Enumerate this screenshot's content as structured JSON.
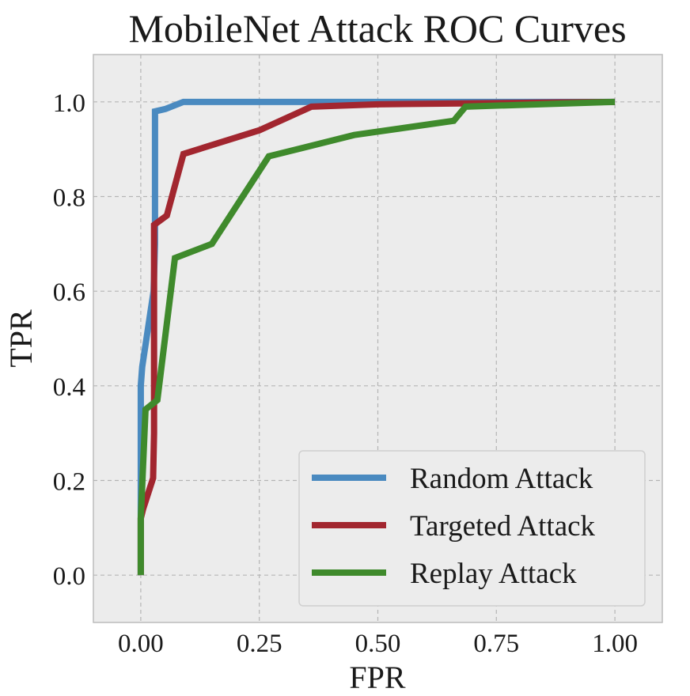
{
  "chart_data": {
    "type": "line",
    "title": "MobileNet Attack ROC Curves",
    "xlabel": "FPR",
    "ylabel": "TPR",
    "xlim": [
      -0.1,
      1.1
    ],
    "ylim": [
      -0.1,
      1.1
    ],
    "xticks": [
      "0.00",
      "0.25",
      "0.50",
      "0.75",
      "1.00"
    ],
    "xtick_values": [
      0,
      0.25,
      0.5,
      0.75,
      1.0
    ],
    "yticks": [
      "0.0",
      "0.2",
      "0.4",
      "0.6",
      "0.8",
      "1.0"
    ],
    "ytick_values": [
      0,
      0.2,
      0.4,
      0.6,
      0.8,
      1.0
    ],
    "grid": true,
    "legend_position": "lower-right",
    "background_color": "#ececec",
    "series": [
      {
        "name": "Random Attack",
        "color": "#4a8ac0",
        "x": [
          0.0,
          0.0,
          0.003,
          0.027,
          0.03,
          0.03,
          0.052,
          0.09,
          1.0
        ],
        "y": [
          0.0,
          0.4,
          0.44,
          0.6,
          0.7,
          0.98,
          0.985,
          1.0,
          1.0
        ]
      },
      {
        "name": "Targeted Attack",
        "color": "#a2262f",
        "x": [
          0.0,
          0.0,
          0.005,
          0.026,
          0.028,
          0.028,
          0.055,
          0.09,
          0.25,
          0.36,
          0.5,
          1.0
        ],
        "y": [
          0.0,
          0.12,
          0.14,
          0.205,
          0.3,
          0.74,
          0.76,
          0.89,
          0.94,
          0.99,
          0.995,
          1.0
        ]
      },
      {
        "name": "Replay Attack",
        "color": "#3f8a2c",
        "x": [
          0.0,
          0.0,
          0.01,
          0.035,
          0.072,
          0.15,
          0.27,
          0.45,
          0.66,
          0.685,
          1.0
        ],
        "y": [
          0.0,
          0.12,
          0.35,
          0.37,
          0.67,
          0.7,
          0.885,
          0.93,
          0.96,
          0.99,
          1.0
        ]
      }
    ]
  }
}
